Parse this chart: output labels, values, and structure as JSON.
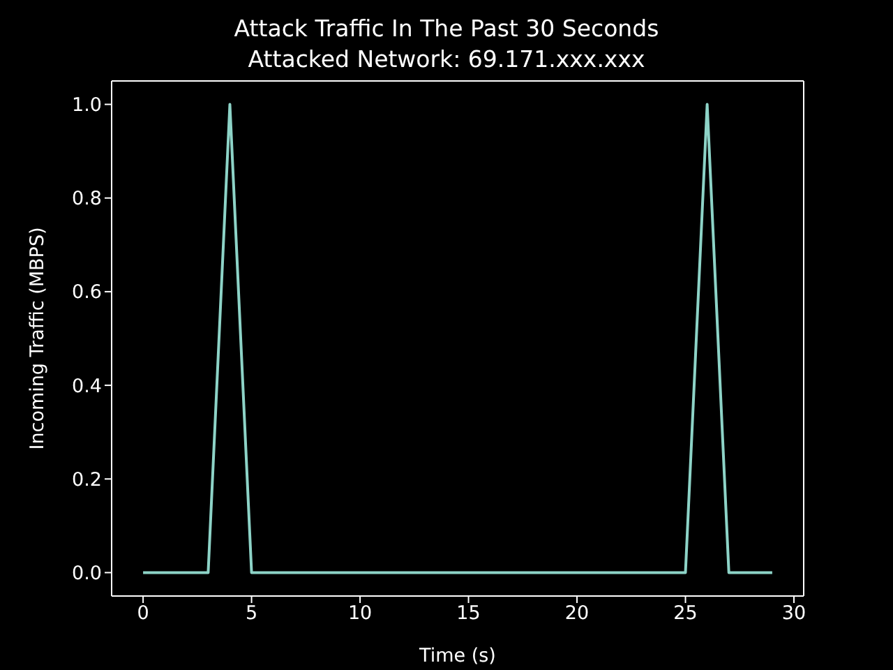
{
  "chart_data": {
    "type": "line",
    "title": "Attack Traffic In The Past 30 Seconds",
    "subtitle": "Attacked Network: 69.171.xxx.xxx",
    "xlabel": "Time (s)",
    "ylabel": "Incoming Traffic (MBPS)",
    "x": [
      0,
      1,
      2,
      3,
      4,
      5,
      6,
      7,
      8,
      9,
      10,
      11,
      12,
      13,
      14,
      15,
      16,
      17,
      18,
      19,
      20,
      21,
      22,
      23,
      24,
      25,
      26,
      27,
      28,
      29
    ],
    "series": [
      {
        "color": "#8dd3c7",
        "values": [
          0,
          0,
          0,
          0,
          1,
          0,
          0,
          0,
          0,
          0,
          0,
          0,
          0,
          0,
          0,
          0,
          0,
          0,
          0,
          0,
          0,
          0,
          0,
          0,
          0,
          0,
          1,
          0,
          0,
          0
        ]
      }
    ],
    "xlim": [
      -1.45,
      30.45
    ],
    "ylim": [
      -0.05,
      1.05
    ],
    "xticks": [
      0,
      5,
      10,
      15,
      20,
      25,
      30
    ],
    "yticks": [
      {
        "value": 0,
        "label": "0.0"
      },
      {
        "value": 0.2,
        "label": "0.2"
      },
      {
        "value": 0.4,
        "label": "0.4"
      },
      {
        "value": 0.6,
        "label": "0.6"
      },
      {
        "value": 0.8,
        "label": "0.8"
      },
      {
        "value": 1,
        "label": "1.0"
      }
    ],
    "grid": false,
    "legend": false,
    "marker": "none",
    "line_style": "solid"
  }
}
